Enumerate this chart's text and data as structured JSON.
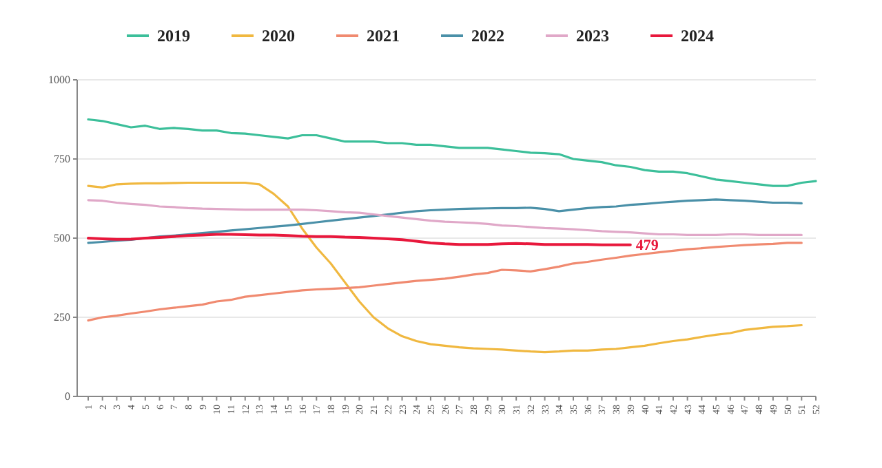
{
  "chart_data": {
    "type": "line",
    "categories": [
      "1",
      "2",
      "3",
      "4",
      "5",
      "6",
      "7",
      "8",
      "9",
      "10",
      "11",
      "12",
      "13",
      "14",
      "15",
      "16",
      "17",
      "18",
      "19",
      "20",
      "21",
      "22",
      "23",
      "24",
      "25",
      "26",
      "27",
      "28",
      "29",
      "30",
      "31",
      "32",
      "33",
      "34",
      "35",
      "36",
      "37",
      "38",
      "39",
      "40",
      "41",
      "42",
      "43",
      "44",
      "45",
      "46",
      "47",
      "48",
      "49",
      "50",
      "51",
      "52"
    ],
    "series": [
      {
        "name": "2019",
        "color": "#3cbf9a",
        "values": [
          875,
          870,
          860,
          850,
          855,
          845,
          848,
          845,
          840,
          840,
          832,
          830,
          825,
          820,
          815,
          825,
          825,
          815,
          805,
          805,
          805,
          800,
          800,
          795,
          795,
          790,
          785,
          785,
          785,
          780,
          775,
          770,
          768,
          765,
          750,
          745,
          740,
          730,
          725,
          715,
          710,
          710,
          705,
          695,
          685,
          680,
          675,
          670,
          665,
          665,
          675,
          680
        ]
      },
      {
        "name": "2020",
        "color": "#f0b840",
        "values": [
          665,
          660,
          670,
          672,
          673,
          673,
          674,
          675,
          675,
          675,
          675,
          675,
          670,
          640,
          600,
          530,
          470,
          420,
          360,
          300,
          250,
          215,
          190,
          175,
          165,
          160,
          155,
          152,
          150,
          148,
          145,
          142,
          140,
          142,
          145,
          145,
          148,
          150,
          155,
          160,
          168,
          175,
          180,
          188,
          195,
          200,
          210,
          215,
          220,
          222,
          225,
          null
        ]
      },
      {
        "name": "2021",
        "color": "#f08a70",
        "values": [
          240,
          250,
          255,
          262,
          268,
          275,
          280,
          285,
          290,
          300,
          305,
          315,
          320,
          325,
          330,
          335,
          338,
          340,
          342,
          345,
          350,
          355,
          360,
          365,
          368,
          372,
          378,
          385,
          390,
          400,
          398,
          395,
          402,
          410,
          420,
          425,
          432,
          438,
          445,
          450,
          455,
          460,
          465,
          468,
          472,
          475,
          478,
          480,
          482,
          485,
          485,
          null
        ]
      },
      {
        "name": "2022",
        "color": "#4a90a8",
        "values": [
          485,
          488,
          492,
          495,
          500,
          505,
          508,
          512,
          516,
          520,
          524,
          528,
          532,
          536,
          540,
          545,
          550,
          555,
          560,
          565,
          570,
          575,
          580,
          585,
          588,
          590,
          592,
          593,
          594,
          595,
          595,
          596,
          592,
          585,
          590,
          595,
          598,
          600,
          605,
          608,
          612,
          615,
          618,
          620,
          622,
          620,
          618,
          615,
          612,
          612,
          610,
          null
        ]
      },
      {
        "name": "2023",
        "color": "#e0a8c8",
        "values": [
          620,
          618,
          612,
          608,
          605,
          600,
          598,
          595,
          593,
          592,
          591,
          590,
          590,
          590,
          590,
          590,
          588,
          585,
          582,
          580,
          575,
          570,
          565,
          560,
          555,
          552,
          550,
          548,
          545,
          540,
          538,
          535,
          532,
          530,
          528,
          525,
          522,
          520,
          518,
          515,
          512,
          512,
          510,
          510,
          510,
          512,
          512,
          510,
          510,
          510,
          510,
          null
        ]
      },
      {
        "name": "2024",
        "color": "#e8183c",
        "values": [
          500,
          498,
          496,
          497,
          500,
          502,
          505,
          508,
          510,
          512,
          512,
          511,
          510,
          510,
          508,
          506,
          505,
          505,
          503,
          502,
          500,
          498,
          495,
          490,
          485,
          482,
          480,
          480,
          480,
          482,
          483,
          482,
          480,
          480,
          480,
          480,
          479,
          479,
          479,
          null,
          null,
          null,
          null,
          null,
          null,
          null,
          null,
          null,
          null,
          null,
          null,
          null
        ]
      }
    ],
    "annotations": [
      {
        "text": "479",
        "x": "39",
        "y": 479
      }
    ],
    "ylim": [
      0,
      1000
    ],
    "yticks": [
      0,
      250,
      500,
      750,
      1000
    ],
    "grid": "y",
    "legend": "top",
    "marker": "none",
    "line_style": "solid"
  }
}
